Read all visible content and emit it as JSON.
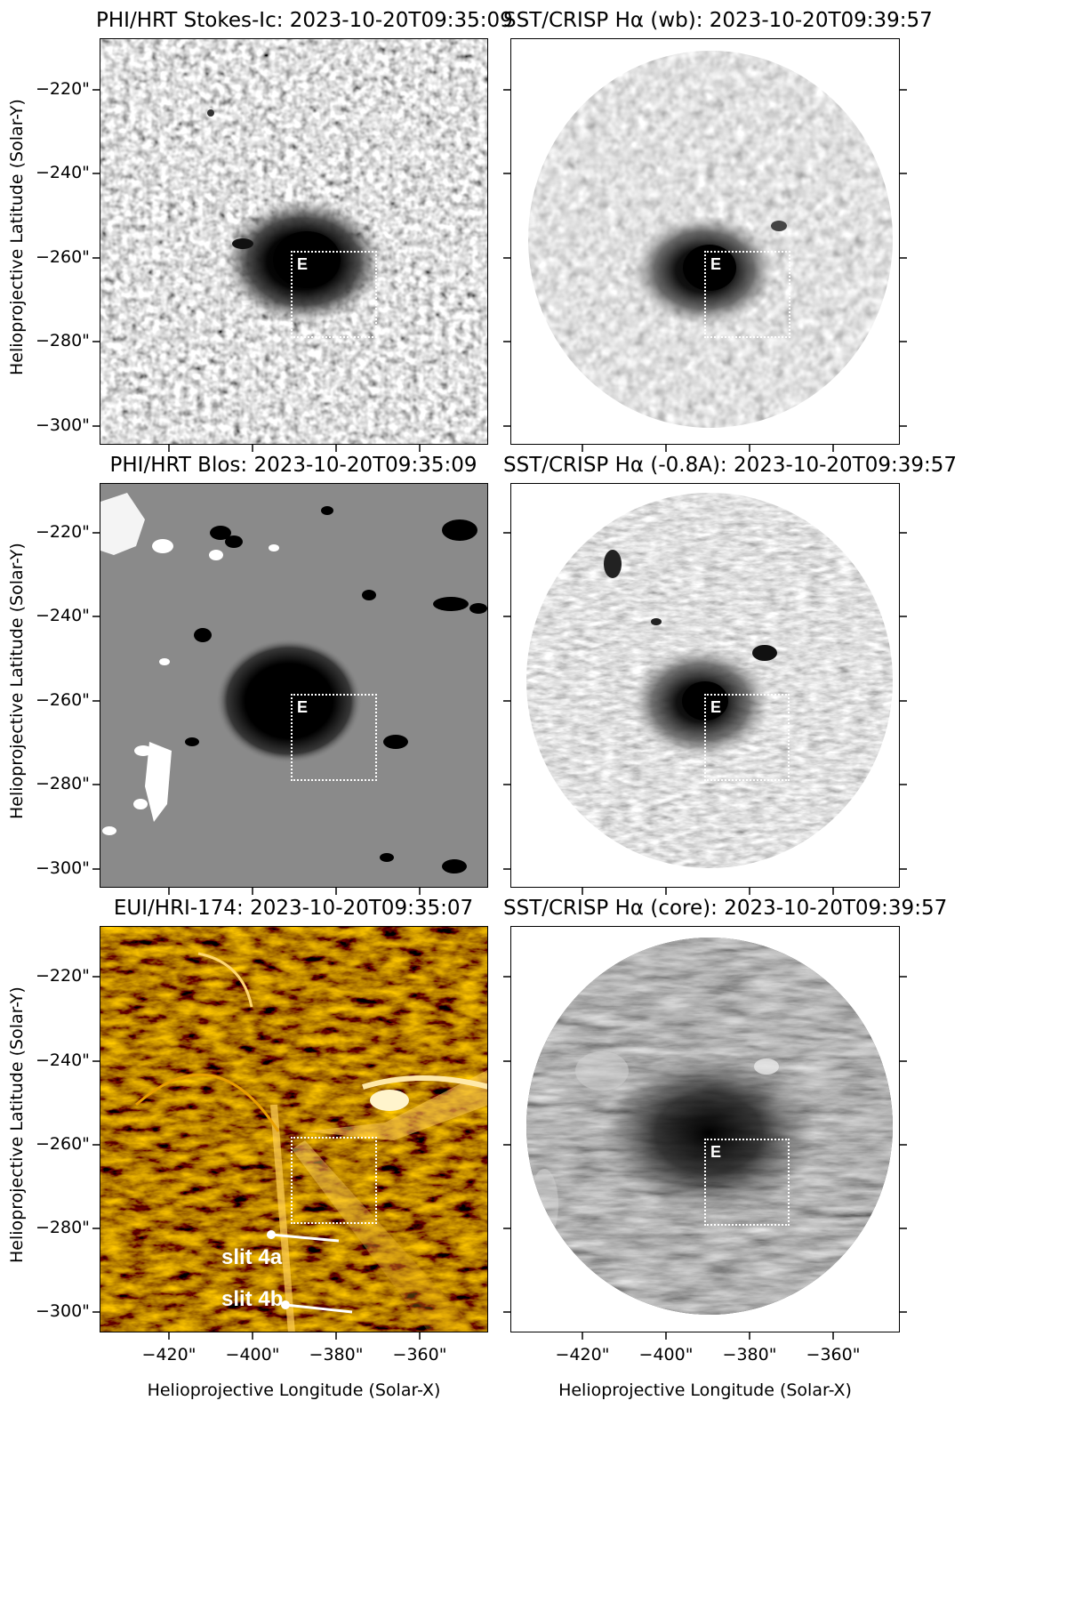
{
  "panels": [
    {
      "id": "p1",
      "title": "PHI/HRT Stokes-Ic: 2023-10-20T09:35:09"
    },
    {
      "id": "p2",
      "title": "SST/CRISP Hα (wb): 2023-10-20T09:39:57"
    },
    {
      "id": "p3",
      "title": "PHI/HRT Blos: 2023-10-20T09:35:09"
    },
    {
      "id": "p4",
      "title": "SST/CRISP Hα (-0.8A): 2023-10-20T09:39:57"
    },
    {
      "id": "p5",
      "title": "EUI/HRI-174: 2023-10-20T09:35:07"
    },
    {
      "id": "p6",
      "title": "SST/CRISP Hα (core): 2023-10-20T09:39:57"
    }
  ],
  "axes": {
    "xlabel": "Helioprojective Longitude (Solar-X)",
    "ylabel": "Helioprojective Latitude (Solar-Y)",
    "xticks": [
      "−420\"",
      "−400\"",
      "−380\"",
      "−360\""
    ],
    "yticks": [
      "−220\"",
      "−240\"",
      "−260\"",
      "−280\"",
      "−300\""
    ]
  },
  "roi_label": "E",
  "slits": {
    "a": "slit 4a",
    "b": "slit 4b"
  },
  "colors": {
    "euv": "#e0a000",
    "grey": "#8a8a8a"
  }
}
